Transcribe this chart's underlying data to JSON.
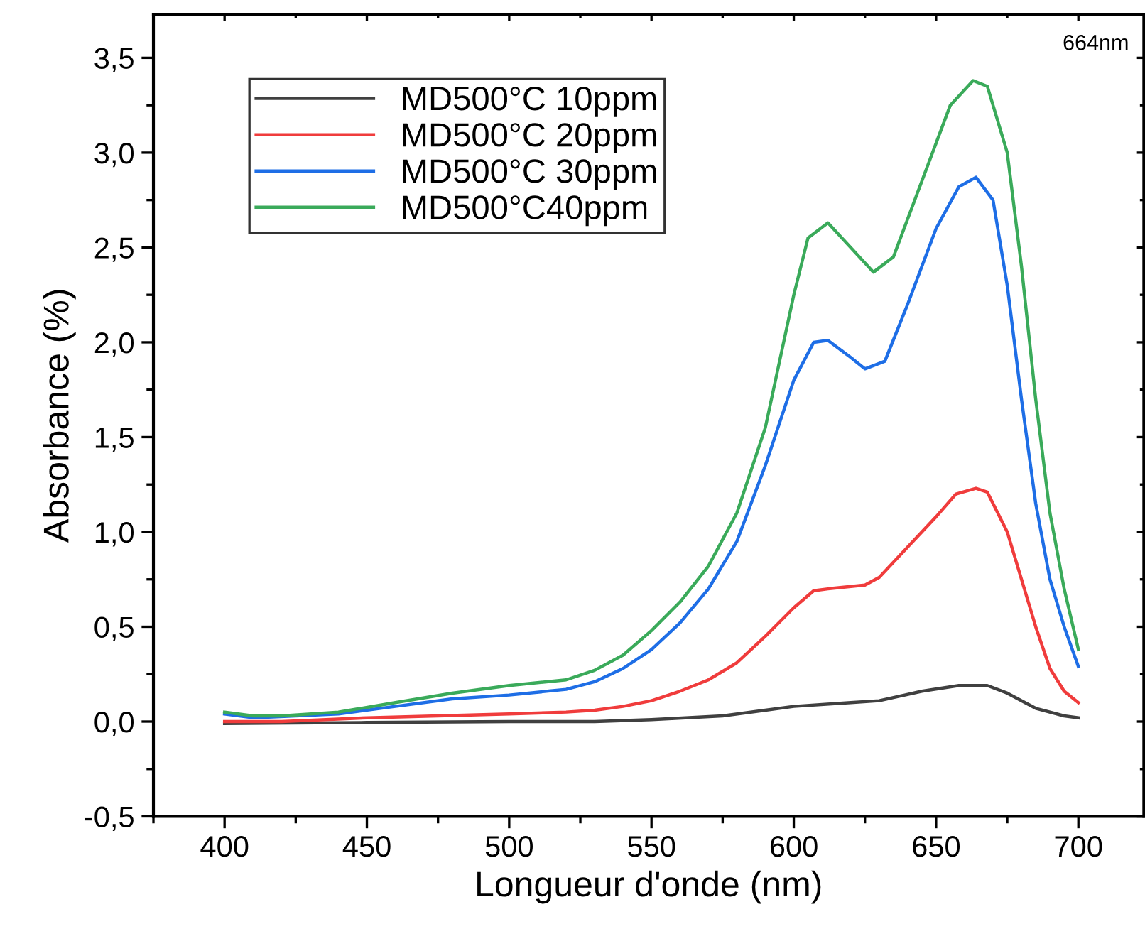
{
  "chart_data": {
    "type": "line",
    "xlabel": "Longueur d'onde (nm)",
    "ylabel": "Absorbance (%)",
    "annotations": [
      "664nm"
    ],
    "xlim": [
      375,
      723
    ],
    "ylim": [
      -0.5,
      3.73
    ],
    "xticks": [
      400,
      450,
      500,
      550,
      600,
      650,
      700
    ],
    "yticks": [
      {
        "value": -0.5,
        "label": "-0,5"
      },
      {
        "value": 0,
        "label": "0,0"
      },
      {
        "value": 0.5,
        "label": "0,5"
      },
      {
        "value": 1.0,
        "label": "1,0"
      },
      {
        "value": 1.5,
        "label": "1,5"
      },
      {
        "value": 2.0,
        "label": "2,0"
      },
      {
        "value": 2.5,
        "label": "2,5"
      },
      {
        "value": 3.0,
        "label": "3,0"
      },
      {
        "value": 3.5,
        "label": "3,5"
      }
    ],
    "grid": false,
    "legend": "top left",
    "marker": "none",
    "line_style": "solid",
    "series": [
      {
        "name": "MD500°C 10ppm",
        "color": "#404040",
        "x": [
          400,
          450,
          500,
          530,
          550,
          575,
          590,
          600,
          620,
          630,
          645,
          658,
          668,
          675,
          685,
          695,
          700
        ],
        "values": [
          -0.01,
          -0.005,
          0.0,
          0.0,
          0.01,
          0.03,
          0.06,
          0.08,
          0.1,
          0.11,
          0.16,
          0.19,
          0.19,
          0.15,
          0.07,
          0.03,
          0.02
        ]
      },
      {
        "name": "MD500°C 20ppm",
        "color": "#f03c3c",
        "x": [
          400,
          420,
          450,
          500,
          520,
          530,
          540,
          550,
          560,
          570,
          580,
          590,
          600,
          607,
          612,
          625,
          630,
          640,
          650,
          657,
          664,
          668,
          675,
          680,
          685,
          690,
          695,
          700
        ],
        "values": [
          0.0,
          0.0,
          0.02,
          0.04,
          0.05,
          0.06,
          0.08,
          0.11,
          0.16,
          0.22,
          0.31,
          0.45,
          0.6,
          0.69,
          0.7,
          0.72,
          0.76,
          0.92,
          1.08,
          1.2,
          1.23,
          1.21,
          1.0,
          0.75,
          0.5,
          0.28,
          0.16,
          0.1
        ]
      },
      {
        "name": "MD500°C 30ppm",
        "color": "#1e6ee6",
        "x": [
          400,
          410,
          440,
          460,
          480,
          500,
          520,
          530,
          540,
          550,
          560,
          570,
          580,
          590,
          600,
          607,
          612,
          620,
          625,
          632,
          640,
          650,
          658,
          664,
          670,
          675,
          680,
          685,
          690,
          695,
          700
        ],
        "values": [
          0.04,
          0.02,
          0.04,
          0.08,
          0.12,
          0.14,
          0.17,
          0.21,
          0.28,
          0.38,
          0.52,
          0.7,
          0.95,
          1.35,
          1.8,
          2.0,
          2.01,
          1.92,
          1.86,
          1.9,
          2.2,
          2.6,
          2.82,
          2.87,
          2.75,
          2.3,
          1.7,
          1.15,
          0.75,
          0.5,
          0.29
        ]
      },
      {
        "name": "MD500°C40ppm",
        "color": "#3aaa5a",
        "x": [
          400,
          410,
          420,
          440,
          460,
          480,
          500,
          520,
          530,
          540,
          550,
          560,
          570,
          580,
          590,
          600,
          605,
          612,
          620,
          628,
          635,
          645,
          655,
          663,
          668,
          675,
          680,
          685,
          690,
          695,
          700
        ],
        "values": [
          0.05,
          0.03,
          0.03,
          0.05,
          0.1,
          0.15,
          0.19,
          0.22,
          0.27,
          0.35,
          0.48,
          0.63,
          0.82,
          1.1,
          1.55,
          2.25,
          2.55,
          2.63,
          2.5,
          2.37,
          2.45,
          2.85,
          3.25,
          3.38,
          3.35,
          3.0,
          2.4,
          1.7,
          1.1,
          0.7,
          0.38
        ]
      }
    ]
  }
}
